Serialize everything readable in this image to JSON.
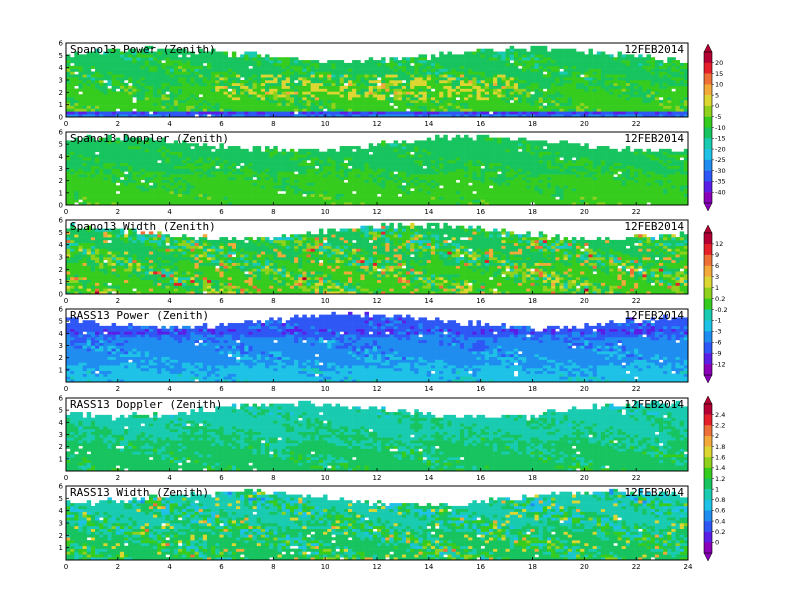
{
  "colors": {
    "palette": [
      "#8a00b8",
      "#5a1ee6",
      "#2f57f5",
      "#1f8cf0",
      "#1ec2e6",
      "#19cbb0",
      "#17c45f",
      "#36cc1e",
      "#8fd11c",
      "#dcd632",
      "#f2a93a",
      "#ee6f37",
      "#e5202a",
      "#b40032"
    ]
  },
  "chart_data": [
    {
      "type": "heatmap",
      "title": "Spano13 Power (Zenith)",
      "date_label": "12FEB2014",
      "x_range": [
        0,
        24
      ],
      "y_range": [
        0,
        6
      ],
      "x_ticks": [
        "0",
        "2",
        "4",
        "6",
        "8",
        "10",
        "12",
        "14",
        "16",
        "18",
        "20",
        "22"
      ],
      "y_ticks": [
        "0",
        "1",
        "2",
        "3",
        "4",
        "5",
        "6"
      ],
      "colorbar": "A",
      "field": {
        "base": 7,
        "bottom_band": true,
        "speckle": 0.6
      }
    },
    {
      "type": "heatmap",
      "title": "Spano13 Doppler (Zenith)",
      "date_label": "12FEB2014",
      "x_range": [
        0,
        24
      ],
      "y_range": [
        0,
        6
      ],
      "x_ticks": [
        "0",
        "2",
        "4",
        "6",
        "8",
        "10",
        "12",
        "14",
        "16",
        "18",
        "20",
        "22"
      ],
      "y_ticks": [
        "0",
        "1",
        "2",
        "3",
        "4",
        "5",
        "6"
      ],
      "colorbar": "A",
      "field": {
        "base": 7,
        "bottom_band": false,
        "speckle": 0.35
      }
    },
    {
      "type": "heatmap",
      "title": "Spano13 Width (Zenith)",
      "date_label": "12FEB2014",
      "x_range": [
        0,
        24
      ],
      "y_range": [
        0,
        6
      ],
      "x_ticks": [
        "0",
        "2",
        "4",
        "6",
        "8",
        "10",
        "12",
        "14",
        "16",
        "18",
        "20",
        "22"
      ],
      "y_ticks": [
        "0",
        "1",
        "2",
        "3",
        "4",
        "5",
        "6"
      ],
      "colorbar": "B",
      "field": {
        "base": 7,
        "bottom_band": false,
        "speckle": 1.1
      }
    },
    {
      "type": "heatmap",
      "title": "RASS13 Power (Zenith)",
      "date_label": "12FEB2014",
      "x_range": [
        0,
        24
      ],
      "y_range": [
        0,
        6
      ],
      "x_ticks": [
        "0",
        "2",
        "4",
        "6",
        "8",
        "10",
        "12",
        "14",
        "16",
        "18",
        "20",
        "22"
      ],
      "y_ticks": [
        "1",
        "2",
        "3",
        "4",
        "5",
        "6"
      ],
      "colorbar": "B",
      "field": {
        "base": 4,
        "bottom_band": false,
        "speckle": 0.5
      }
    },
    {
      "type": "heatmap",
      "title": "RASS13 Doppler (Zenith)",
      "date_label": "12FEB2014",
      "x_range": [
        0,
        24
      ],
      "y_range": [
        0,
        6
      ],
      "x_ticks": [
        "0",
        "2",
        "4",
        "6",
        "8",
        "10",
        "12",
        "14",
        "16",
        "18",
        "20",
        "22"
      ],
      "y_ticks": [
        "1",
        "2",
        "3",
        "4",
        "5",
        "6"
      ],
      "colorbar": "C",
      "field": {
        "base": 6,
        "bottom_band": false,
        "speckle": 0.5
      }
    },
    {
      "type": "heatmap",
      "title": "RASS13 Width (Zenith)",
      "date_label": "12FEB2014",
      "x_range": [
        0,
        24
      ],
      "y_range": [
        0,
        6
      ],
      "x_ticks": [
        "0",
        "2",
        "4",
        "6",
        "8",
        "10",
        "12",
        "14",
        "16",
        "18",
        "20",
        "22",
        "24"
      ],
      "y_ticks": [
        "1",
        "2",
        "3",
        "4",
        "5",
        "6"
      ],
      "colorbar": "C",
      "field": {
        "base": 6,
        "bottom_band": false,
        "speckle": 1.0
      }
    }
  ],
  "colorbars": {
    "A": {
      "labels": [
        "20",
        "15",
        "10",
        "5",
        "0",
        "-5",
        "-10",
        "-15",
        "-20",
        "-25",
        "-30",
        "-35",
        "-40"
      ]
    },
    "B": {
      "labels": [
        "12",
        "9",
        "6",
        "3",
        "1",
        "0.2",
        "-0.2",
        "-1",
        "-3",
        "-6",
        "-9",
        "-12"
      ]
    },
    "C": {
      "labels": [
        "2.4",
        "2.2",
        "2",
        "1.8",
        "1.6",
        "1.4",
        "1.2",
        "1",
        "0.8",
        "0.6",
        "0.4",
        "0.2",
        "0"
      ]
    }
  }
}
